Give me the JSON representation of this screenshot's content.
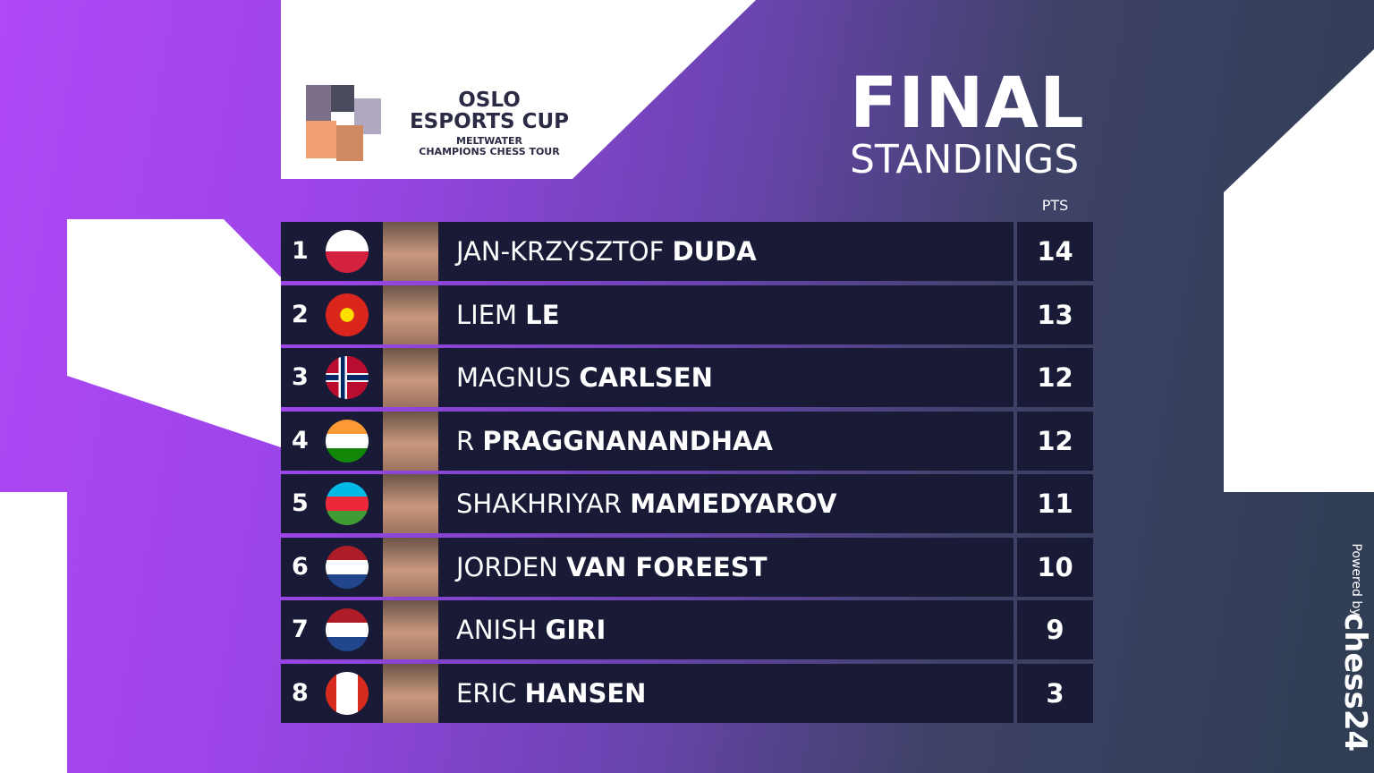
{
  "logo": {
    "line1": "OSLO",
    "line2": "ESPORTS CUP",
    "line3": "MELTWATER",
    "line4": "CHAMPIONS CHESS TOUR"
  },
  "heading": {
    "title": "FINAL",
    "subtitle": "STANDINGS"
  },
  "table": {
    "points_header": "PTS",
    "rows": [
      {
        "rank": 1,
        "first": "JAN-KRZYSZTOF",
        "last": "DUDA",
        "points": 14
      },
      {
        "rank": 2,
        "first": "LIEM",
        "last": "LE",
        "points": 13
      },
      {
        "rank": 3,
        "first": "MAGNUS",
        "last": "CARLSEN",
        "points": 12
      },
      {
        "rank": 4,
        "first": "R",
        "last": "PRAGGNANANDHAA",
        "points": 12
      },
      {
        "rank": 5,
        "first": "SHAKHRIYAR",
        "last": "MAMEDYAROV",
        "points": 11
      },
      {
        "rank": 6,
        "first": "JORDEN",
        "last": "VAN FOREEST",
        "points": 10
      },
      {
        "rank": 7,
        "first": "ANISH",
        "last": "GIRI",
        "points": 9
      },
      {
        "rank": 8,
        "first": "ERIC",
        "last": "HANSEN",
        "points": 3
      }
    ]
  },
  "sponsor": {
    "label": "Powered by",
    "brand": "chess24"
  }
}
